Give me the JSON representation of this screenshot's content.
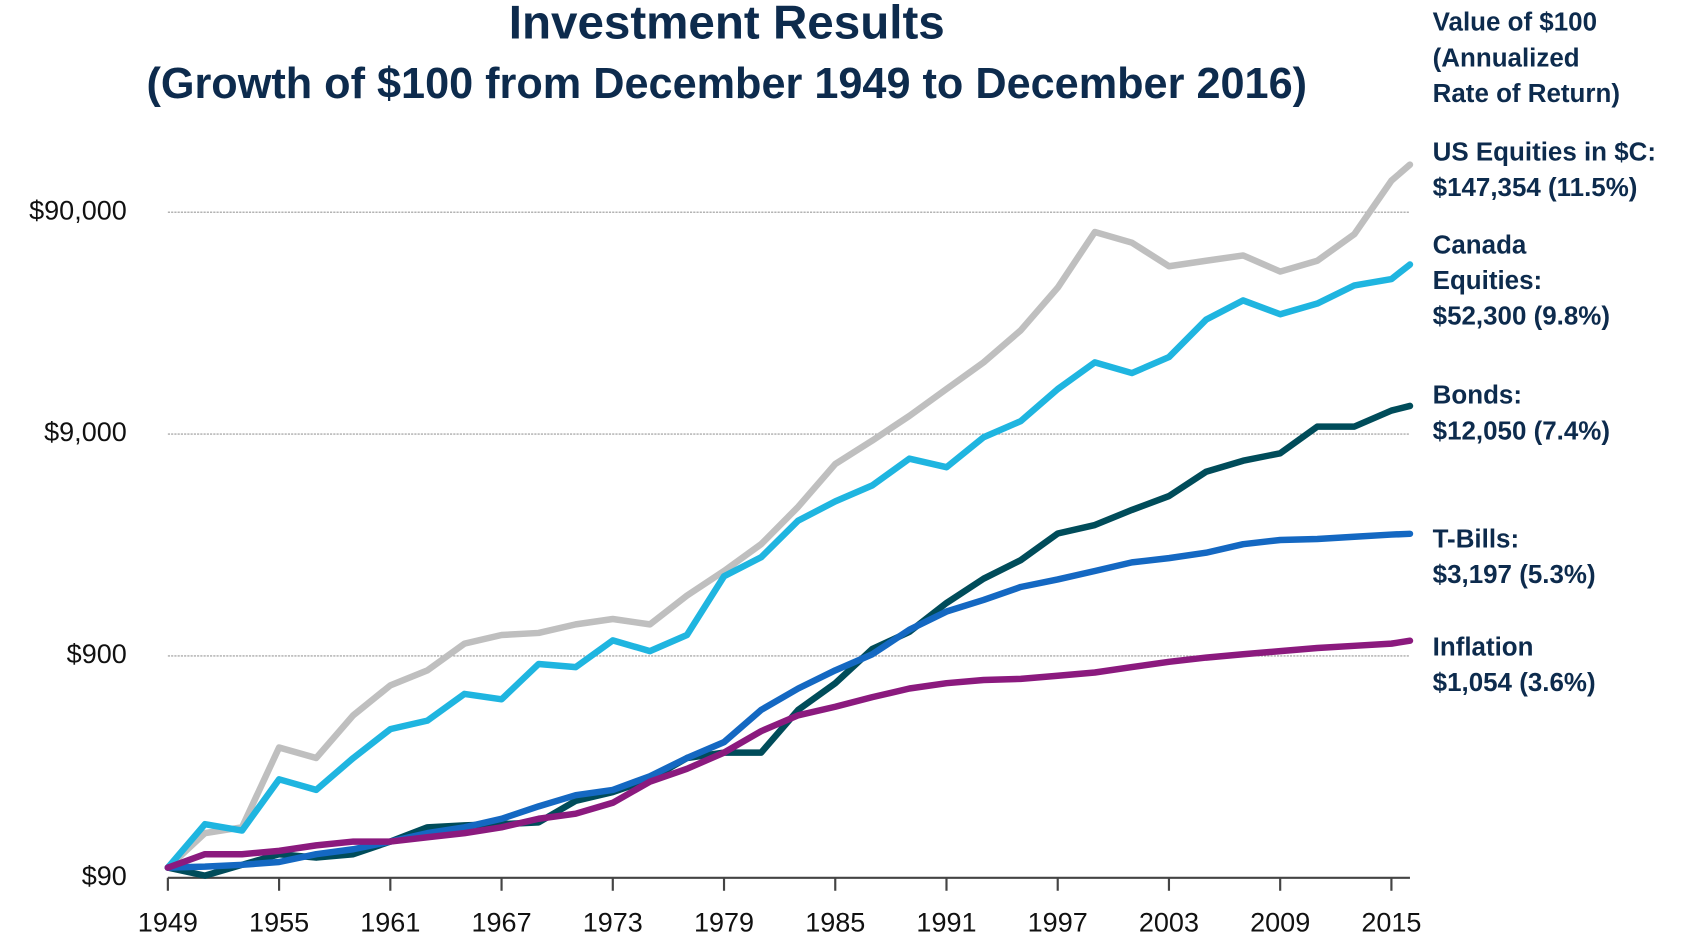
{
  "chart_data": {
    "type": "line",
    "title": "Investment Results",
    "subtitle": "(Growth of $100 from December 1949 to December 2016)",
    "legend_title_lines": [
      "Value of $100",
      "(Annualized",
      "Rate of Return)"
    ],
    "log_scale": true,
    "grid": true,
    "x": [
      1949,
      1951,
      1953,
      1955,
      1957,
      1959,
      1961,
      1963,
      1965,
      1967,
      1969,
      1971,
      1973,
      1975,
      1977,
      1979,
      1981,
      1983,
      1985,
      1987,
      1989,
      1991,
      1993,
      1995,
      1997,
      1999,
      2001,
      2003,
      2005,
      2007,
      2009,
      2011,
      2013,
      2015,
      2016
    ],
    "xlim": [
      1949,
      2016
    ],
    "xticks": [
      1949,
      1955,
      1961,
      1967,
      1973,
      1979,
      1985,
      1991,
      1997,
      2003,
      2009,
      2015
    ],
    "ylim": [
      90,
      160000
    ],
    "yticks": [
      {
        "value": 90,
        "label": "$90"
      },
      {
        "value": 900,
        "label": "$900"
      },
      {
        "value": 9000,
        "label": "$9,000"
      },
      {
        "value": 90000,
        "label": "$90,000"
      }
    ],
    "series": [
      {
        "label_lines": [
          "US Equities in $C:",
          "$147,354 (11.5%)"
        ],
        "color": "#bfbfbf",
        "values": [
          100,
          143,
          152,
          348,
          312,
          486,
          663,
          775,
          1022,
          1118,
          1142,
          1249,
          1320,
          1249,
          1685,
          2174,
          2869,
          4230,
          6597,
          8415,
          10870,
          14350,
          18940,
          26410,
          41140,
          73320,
          65600,
          51370,
          54350,
          57430,
          48600,
          54350,
          71660,
          124800,
          147354
        ]
      },
      {
        "label_lines": [
          "Canada",
          "Equities:",
          "$52,300  (9.8%)"
        ],
        "color": "#1fb5e0",
        "values": [
          100,
          157,
          147,
          250,
          224,
          312,
          421,
          460,
          607,
          574,
          828,
          801,
          1057,
          946,
          1118,
          2057,
          2505,
          3665,
          4473,
          5283,
          6974,
          6380,
          8700,
          10290,
          14350,
          18940,
          16940,
          20010,
          29510,
          36040,
          31200,
          34860,
          42090,
          45000,
          52300
        ]
      },
      {
        "label_lines": [
          "Bonds:",
          "$12,050  (7.4%)"
        ],
        "color": "#004c5a",
        "values": [
          100,
          92,
          103,
          115,
          111,
          115,
          131,
          152,
          155,
          157,
          160,
          200,
          219,
          250,
          312,
          330,
          330,
          514,
          678,
          968,
          1155,
          1559,
          2007,
          2430,
          3206,
          3502,
          4095,
          4730,
          6083,
          6820,
          7373,
          9730,
          9730,
          11490,
          12050
        ]
      },
      {
        "label_lines": [
          "T-Bills:",
          "$3,197  (5.3%)"
        ],
        "color": "#1468c2",
        "values": [
          100,
          101,
          103,
          106,
          115,
          121,
          131,
          143,
          152,
          166,
          189,
          212,
          224,
          258,
          312,
          368,
          514,
          642,
          775,
          916,
          1181,
          1426,
          1608,
          1841,
          1990,
          2174,
          2376,
          2484,
          2625,
          2869,
          2998,
          3030,
          3100,
          3172,
          3197
        ]
      },
      {
        "label_lines": [
          "Inflation",
          "$1,054  (3.6%)"
        ],
        "color": "#8b1a7e",
        "values": [
          100,
          115,
          115,
          119,
          126,
          131,
          131,
          137,
          143,
          152,
          166,
          175,
          196,
          244,
          279,
          330,
          412,
          486,
          531,
          587,
          642,
          678,
          701,
          709,
          733,
          758,
          801,
          847,
          885,
          916,
          946,
          978,
          1000,
          1022,
          1054
        ]
      }
    ]
  }
}
